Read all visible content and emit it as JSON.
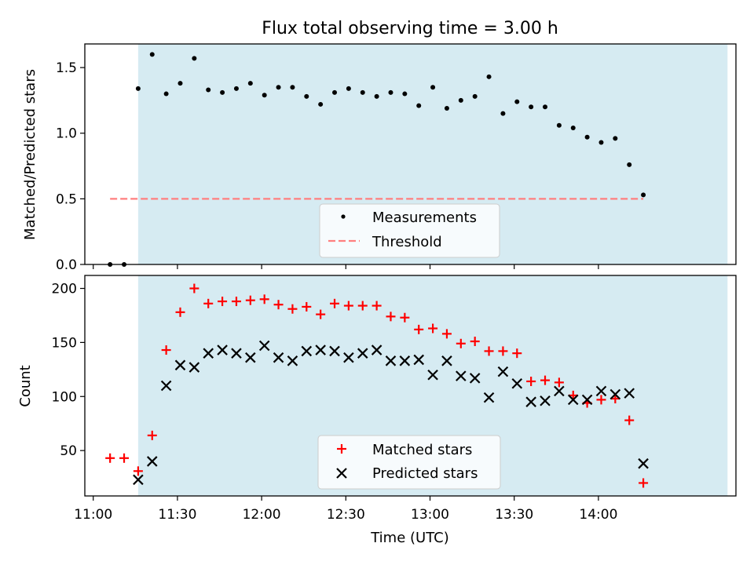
{
  "chart_data": [
    {
      "type": "scatter",
      "title": "Flux total observing time = 3.00 h",
      "xlabel": "",
      "ylabel": "Matched/Predicted stars",
      "ylim": [
        0,
        1.68
      ],
      "yticks": [
        0.0,
        0.5,
        1.0,
        1.5
      ],
      "ytick_labels": [
        "0.0",
        "0.5",
        "1.0",
        "1.5"
      ],
      "xlim": [
        "10:57",
        "14:49"
      ],
      "shaded_interval": [
        "11:16",
        "14:46"
      ],
      "shade_color": "#add8e6",
      "grid": false,
      "legend_position": "lower-center",
      "series": [
        {
          "name": "Measurements",
          "kind": "points",
          "color": "#000000",
          "x": [
            "11:06",
            "11:11",
            "11:16",
            "11:21",
            "11:26",
            "11:31",
            "11:36",
            "11:41",
            "11:46",
            "11:51",
            "11:56",
            "12:01",
            "12:06",
            "12:11",
            "12:16",
            "12:21",
            "12:26",
            "12:31",
            "12:36",
            "12:41",
            "12:46",
            "12:51",
            "12:56",
            "13:01",
            "13:06",
            "13:11",
            "13:16",
            "13:21",
            "13:26",
            "13:31",
            "13:36",
            "13:41",
            "13:46",
            "13:51",
            "13:56",
            "14:01",
            "14:06",
            "14:11",
            "14:16"
          ],
          "y": [
            0.0,
            0.0,
            1.34,
            1.6,
            1.3,
            1.38,
            1.57,
            1.33,
            1.31,
            1.34,
            1.38,
            1.29,
            1.35,
            1.35,
            1.28,
            1.22,
            1.31,
            1.34,
            1.31,
            1.28,
            1.31,
            1.3,
            1.21,
            1.35,
            1.19,
            1.25,
            1.28,
            1.43,
            1.15,
            1.24,
            1.2,
            1.2,
            1.06,
            1.04,
            0.97,
            0.93,
            0.96,
            0.76,
            0.53
          ]
        },
        {
          "name": "Threshold",
          "kind": "dashed-line",
          "color": "#ff7f7f",
          "x": [
            "11:06",
            "14:16"
          ],
          "y": [
            0.5,
            0.5
          ]
        }
      ]
    },
    {
      "type": "scatter",
      "xlabel": "Time (UTC)",
      "ylabel": "Count",
      "ylim": [
        8,
        212
      ],
      "yticks": [
        50,
        100,
        150,
        200
      ],
      "ytick_labels": [
        "50",
        "100",
        "150",
        "200"
      ],
      "xlim": [
        "10:57",
        "14:49"
      ],
      "xticks": [
        "11:00",
        "11:30",
        "12:00",
        "12:30",
        "13:00",
        "13:30",
        "14:00"
      ],
      "xtick_labels": [
        "11:00",
        "11:30",
        "12:00",
        "12:30",
        "13:00",
        "13:30",
        "14:00"
      ],
      "shaded_interval": [
        "11:16",
        "14:46"
      ],
      "shade_color": "#add8e6",
      "grid": false,
      "legend_position": "lower-center",
      "series": [
        {
          "name": "Matched stars",
          "marker": "plus",
          "color": "#ff0000",
          "x": [
            "11:06",
            "11:11",
            "11:16",
            "11:21",
            "11:26",
            "11:31",
            "11:36",
            "11:41",
            "11:46",
            "11:51",
            "11:56",
            "12:01",
            "12:06",
            "12:11",
            "12:16",
            "12:21",
            "12:26",
            "12:31",
            "12:36",
            "12:41",
            "12:46",
            "12:51",
            "12:56",
            "13:01",
            "13:06",
            "13:11",
            "13:16",
            "13:21",
            "13:26",
            "13:31",
            "13:36",
            "13:41",
            "13:46",
            "13:51",
            "13:56",
            "14:01",
            "14:06",
            "14:11",
            "14:16"
          ],
          "y": [
            43,
            43,
            31,
            64,
            143,
            178,
            200,
            186,
            188,
            188,
            189,
            190,
            185,
            181,
            183,
            176,
            186,
            184,
            184,
            184,
            174,
            173,
            162,
            163,
            158,
            149,
            151,
            142,
            142,
            140,
            114,
            115,
            113,
            101,
            94,
            97,
            98,
            78,
            20
          ]
        },
        {
          "name": "Predicted stars",
          "marker": "x",
          "color": "#000000",
          "x": [
            "11:16",
            "11:21",
            "11:26",
            "11:31",
            "11:36",
            "11:41",
            "11:46",
            "11:51",
            "11:56",
            "12:01",
            "12:06",
            "12:11",
            "12:16",
            "12:21",
            "12:26",
            "12:31",
            "12:36",
            "12:41",
            "12:46",
            "12:51",
            "12:56",
            "13:01",
            "13:06",
            "13:11",
            "13:16",
            "13:21",
            "13:26",
            "13:31",
            "13:36",
            "13:41",
            "13:46",
            "13:51",
            "13:56",
            "14:01",
            "14:06",
            "14:11",
            "14:16"
          ],
          "y": [
            23,
            40,
            110,
            129,
            127,
            140,
            143,
            140,
            136,
            147,
            136,
            133,
            142,
            143,
            142,
            136,
            140,
            143,
            133,
            133,
            134,
            120,
            133,
            119,
            117,
            99,
            123,
            112,
            95,
            96,
            105,
            97,
            97,
            105,
            102,
            103,
            38
          ]
        }
      ]
    }
  ]
}
